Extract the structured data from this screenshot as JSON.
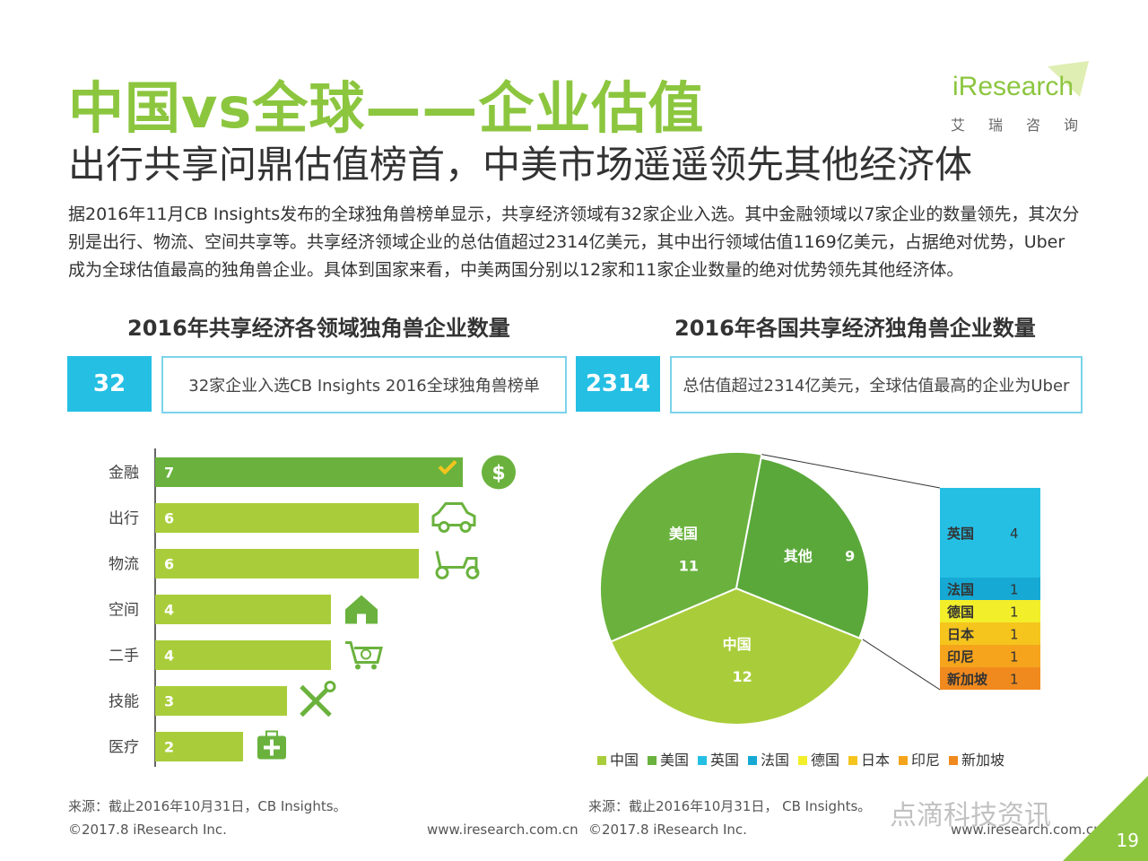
{
  "header": {
    "title": "中国vs全球——企业估值",
    "subtitle": "出行共享问鼎估值榜首，中美市场遥遥领先其他经济体"
  },
  "logo": {
    "brand": "iResearch",
    "sub": "艾瑞咨询"
  },
  "description": "据2016年11月CB Insights发布的全球独角兽榜单显示，共享经济领域有32家企业入选。其中金融领域以7家企业的数量领先，其次分别是出行、物流、空间共享等。共享经济领域企业的总估值超过2314亿美元，其中出行领域估值1169亿美元，占据绝对优势，Uber成为全球估值最高的独角兽企业。具体到国家来看，中美两国分别以12家和11家企业数量的绝对优势领先其他经济体。",
  "left_panel": {
    "heading": "2016年共享经济各领域独角兽企业数量",
    "stat_value": "32",
    "stat_text": "32家企业入选CB Insights 2016全球独角兽榜单",
    "source": "来源：截止2016年10月31日，CB Insights。"
  },
  "right_panel": {
    "heading": "2016年各国共享经济独角兽企业数量",
    "stat_value": "2314",
    "stat_text": "总估值超过2314亿美元，全球估值最高的企业为Uber",
    "source": "来源：截止2016年10月31日， CB Insights。"
  },
  "chart_data": [
    {
      "type": "bar",
      "orientation": "horizontal",
      "title": "2016年共享经济各领域独角兽企业数量",
      "categories": [
        "金融",
        "出行",
        "物流",
        "空间",
        "二手",
        "技能",
        "医疗"
      ],
      "values": [
        7,
        6,
        6,
        4,
        4,
        3,
        2
      ],
      "xlim": [
        0,
        8
      ],
      "colors": {
        "highlight": "#6ab23d",
        "normal": "#a9cd3a"
      },
      "icons": [
        "dollar-icon",
        "car-icon",
        "scooter-icon",
        "house-icon",
        "cart-icon",
        "tools-icon",
        "medical-icon"
      ]
    },
    {
      "type": "pie",
      "title": "2016年各国共享经济独角兽企业数量",
      "slices": [
        {
          "label": "中国",
          "value": 12,
          "color": "#a9cd3a"
        },
        {
          "label": "美国",
          "value": 11,
          "color": "#6ab23d"
        },
        {
          "label": "其他",
          "value": 9,
          "color": "#5aa83a"
        }
      ],
      "breakdown": [
        {
          "label": "英国",
          "value": 4,
          "color": "#25bfe4"
        },
        {
          "label": "法国",
          "value": 1,
          "color": "#16a9d4"
        },
        {
          "label": "德国",
          "value": 1,
          "color": "#f2ee2a"
        },
        {
          "label": "日本",
          "value": 1,
          "color": "#f5c51e"
        },
        {
          "label": "印尼",
          "value": 1,
          "color": "#f6a41c"
        },
        {
          "label": "新加坡",
          "value": 1,
          "color": "#f08a1e"
        }
      ],
      "legend": [
        {
          "label": "中国",
          "color": "#a9cd3a"
        },
        {
          "label": "美国",
          "color": "#6ab23d"
        },
        {
          "label": "英国",
          "color": "#25bfe4"
        },
        {
          "label": "法国",
          "color": "#16a9d4"
        },
        {
          "label": "德国",
          "color": "#f2ee2a"
        },
        {
          "label": "日本",
          "color": "#f5c51e"
        },
        {
          "label": "印尼",
          "color": "#f6a41c"
        },
        {
          "label": "新加坡",
          "color": "#f08a1e"
        }
      ]
    }
  ],
  "footer": {
    "copyright": "©2017.8 iResearch Inc.",
    "url": "www.iresearch.com.cn",
    "page": "19",
    "watermark": "点滴科技资讯"
  }
}
